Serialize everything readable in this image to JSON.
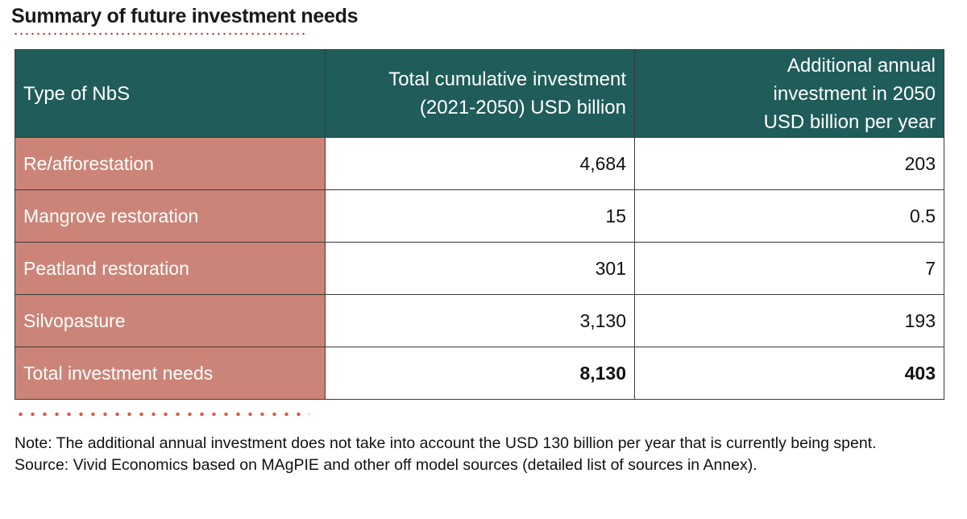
{
  "title": "Summary of future investment needs",
  "table": {
    "headers": {
      "type": "Type of NbS",
      "cumulative_line1": "Total cumulative investment",
      "cumulative_line2": "(2021-2050) USD billion",
      "annual_line1": "Additional annual",
      "annual_line2": "investment in 2050",
      "annual_line3": "USD billion per year"
    },
    "rows": [
      {
        "type": "Re/afforestation",
        "cumulative": "4,684",
        "annual": "203"
      },
      {
        "type": "Mangrove restoration",
        "cumulative": "15",
        "annual": "0.5"
      },
      {
        "type": "Peatland restoration",
        "cumulative": "301",
        "annual": "7"
      },
      {
        "type": "Silvopasture",
        "cumulative": "3,130",
        "annual": "193"
      }
    ],
    "total": {
      "type": "Total investment needs",
      "cumulative": "8,130",
      "annual": "403"
    }
  },
  "notes": {
    "note": "Note: The additional annual investment does not take into account the USD 130 billion per year that is currently being spent.",
    "source": "Source: Vivid Economics based on MAgPIE and other off model sources (detailed list of sources in Annex)."
  },
  "colors": {
    "header_bg": "#1f5c5a",
    "type_cell_bg": "#cc8478",
    "dot_accent": "#d35b45"
  }
}
